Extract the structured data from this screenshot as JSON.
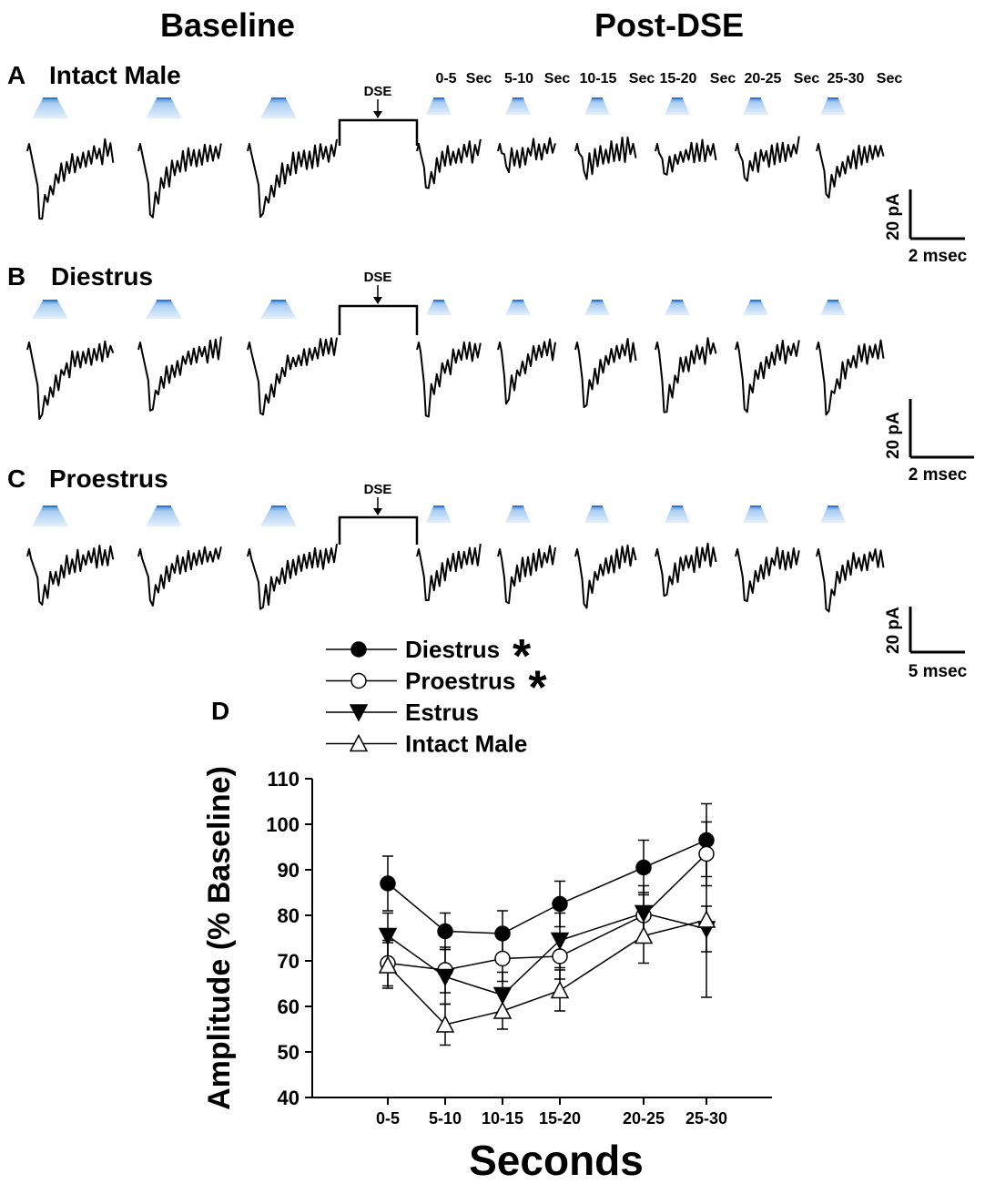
{
  "headers": {
    "baseline": "Baseline",
    "post": "Post-DSE"
  },
  "time_labels": [
    {
      "range": "0-5",
      "unit": "Sec"
    },
    {
      "range": "5-10",
      "unit": "Sec"
    },
    {
      "range": "10-15",
      "unit": "Sec"
    },
    {
      "range": "15-20",
      "unit": "Sec"
    },
    {
      "range": "20-25",
      "unit": "Sec"
    },
    {
      "range": "25-30",
      "unit": "Sec"
    }
  ],
  "panels": [
    {
      "letter": "A",
      "title": "Intact Male",
      "dse_label": "DSE",
      "scale_y": "20 pA",
      "scale_x": "2 msec",
      "trace_depths": [
        1.0,
        0.95,
        0.98,
        0.62,
        0.36,
        0.42,
        0.45,
        0.5,
        0.7
      ]
    },
    {
      "letter": "B",
      "title": "Diestrus",
      "dse_label": "DSE",
      "scale_y": "20 pA",
      "scale_x": "2 msec",
      "trace_depths": [
        1.0,
        0.9,
        0.93,
        0.96,
        0.82,
        0.86,
        0.92,
        0.88,
        0.95
      ]
    },
    {
      "letter": "C",
      "title": "Proestrus",
      "dse_label": "DSE",
      "scale_y": "20 pA",
      "scale_x": "5 msec",
      "trace_depths": [
        0.82,
        0.8,
        0.92,
        0.8,
        0.82,
        0.85,
        0.74,
        0.8,
        0.92
      ]
    }
  ],
  "chart_data": {
    "type": "line",
    "panel_label": "D",
    "title": "",
    "xlabel": "Seconds",
    "ylabel": "Amplitude (% Baseline)",
    "categories": [
      "0-5",
      "5-10",
      "10-15",
      "15-20",
      "20-25",
      "25-30"
    ],
    "ylim": [
      40,
      110
    ],
    "yticks": [
      40,
      50,
      60,
      70,
      80,
      90,
      100,
      110
    ],
    "legend_position": "top-left",
    "series": [
      {
        "name": "Diestrus",
        "marker": "circle-filled",
        "significant": "*",
        "values": [
          87,
          76.5,
          76,
          82.5,
          90.5,
          96.5
        ],
        "errors": [
          6,
          4,
          5,
          5,
          6,
          8
        ]
      },
      {
        "name": "Proestrus",
        "marker": "circle-open",
        "significant": "*",
        "values": [
          69.5,
          68,
          70.5,
          71,
          80,
          93.5
        ],
        "errors": [
          5,
          5,
          5,
          5,
          5,
          7
        ]
      },
      {
        "name": "Estrus",
        "marker": "triangle-down-filled",
        "significant": "",
        "values": [
          75.5,
          66.5,
          62.5,
          74.5,
          80.5,
          77
        ],
        "errors": [
          5,
          6,
          5,
          6,
          6,
          5
        ]
      },
      {
        "name": "Intact Male",
        "marker": "triangle-up-open",
        "significant": "",
        "values": [
          69,
          56,
          59,
          63.5,
          75.5,
          79
        ],
        "errors": [
          5,
          4.5,
          4,
          4.5,
          6,
          17
        ]
      }
    ]
  }
}
